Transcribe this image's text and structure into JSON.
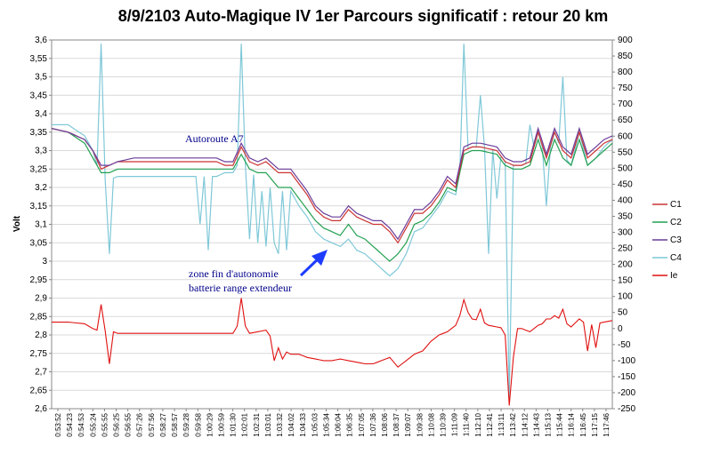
{
  "chart_data": {
    "type": "line",
    "title": "8/9/2103  Auto-Magique IV 1er Parcours significatif : retour 20 km",
    "ylabel": "Volt",
    "y_left": {
      "lim": [
        2.6,
        3.6
      ],
      "ticks": [
        "3,6",
        "3,55",
        "3,5",
        "3,45",
        "3,4",
        "3,35",
        "3,3",
        "3,25",
        "3,2",
        "3,15",
        "3,1",
        "3,05",
        "3",
        "2,95",
        "2,9",
        "2,85",
        "2,8",
        "2,75",
        "2,7",
        "2,65",
        "2,6"
      ]
    },
    "y_right": {
      "lim": [
        -250,
        900
      ],
      "ticks": [
        "900",
        "850",
        "800",
        "750",
        "700",
        "650",
        "600",
        "550",
        "500",
        "450",
        "400",
        "350",
        "300",
        "250",
        "200",
        "150",
        "100",
        "50",
        "0",
        "-50",
        "-100",
        "-150",
        "-200",
        "-250"
      ]
    },
    "x_ticks": [
      "0:53:52",
      "0:54:23",
      "0:54:53",
      "0:55:24",
      "0:55:55",
      "0:56:25",
      "0:56:55",
      "0:57:26",
      "0:57:56",
      "0:58:27",
      "0:58:57",
      "0:59:28",
      "0:59:58",
      "1:00:29",
      "1:00:59",
      "1:01:30",
      "1:02:01",
      "1:02:31",
      "1:03:01",
      "1:03:32",
      "1:04:02",
      "1:04:33",
      "1:05:03",
      "1:05:34",
      "1:06:04",
      "1:06:35",
      "1:07:05",
      "1:07:36",
      "1:08:06",
      "1:08:37",
      "1:09:07",
      "1:09:38",
      "1:10:08",
      "1:10:39",
      "1:11:09",
      "1:11:40",
      "1:12:10",
      "1:12:41",
      "1:13:11",
      "1:13:42",
      "1:14:12",
      "1:14:43",
      "1:15:13",
      "1:15:44",
      "1:16:14",
      "1:16:45",
      "1:17:15",
      "1:17:46"
    ],
    "grid": true,
    "legend_position": "right",
    "series": [
      {
        "name": "C1",
        "axis": "left",
        "color": "#cc3333"
      },
      {
        "name": "C2",
        "axis": "left",
        "color": "#22a050"
      },
      {
        "name": "C3",
        "axis": "left",
        "color": "#6a3d9a"
      },
      {
        "name": "C4",
        "axis": "left",
        "color": "#7fc8d8"
      },
      {
        "name": "Ie",
        "axis": "right",
        "color": "#e01010"
      }
    ],
    "anchors": {
      "C1": [
        [
          0,
          3.36
        ],
        [
          4,
          3.35
        ],
        [
          8,
          3.33
        ],
        [
          10,
          3.3
        ],
        [
          12,
          3.25
        ],
        [
          14,
          3.26
        ],
        [
          16,
          3.27
        ],
        [
          20,
          3.27
        ],
        [
          26,
          3.27
        ],
        [
          30,
          3.27
        ],
        [
          34,
          3.27
        ],
        [
          38,
          3.27
        ],
        [
          40,
          3.27
        ],
        [
          42,
          3.26
        ],
        [
          44,
          3.26
        ],
        [
          46,
          3.31
        ],
        [
          48,
          3.27
        ],
        [
          50,
          3.26
        ],
        [
          52,
          3.27
        ],
        [
          55,
          3.24
        ],
        [
          58,
          3.24
        ],
        [
          60,
          3.21
        ],
        [
          62,
          3.18
        ],
        [
          64,
          3.14
        ],
        [
          66,
          3.12
        ],
        [
          68,
          3.11
        ],
        [
          70,
          3.11
        ],
        [
          72,
          3.14
        ],
        [
          74,
          3.12
        ],
        [
          76,
          3.11
        ],
        [
          78,
          3.1
        ],
        [
          80,
          3.1
        ],
        [
          82,
          3.08
        ],
        [
          84,
          3.05
        ],
        [
          86,
          3.09
        ],
        [
          88,
          3.13
        ],
        [
          90,
          3.13
        ],
        [
          92,
          3.15
        ],
        [
          94,
          3.18
        ],
        [
          96,
          3.22
        ],
        [
          98,
          3.2
        ],
        [
          100,
          3.3
        ],
        [
          102,
          3.31
        ],
        [
          104,
          3.31
        ],
        [
          108,
          3.3
        ],
        [
          110,
          3.27
        ],
        [
          112,
          3.26
        ],
        [
          114,
          3.26
        ],
        [
          116,
          3.27
        ],
        [
          118,
          3.35
        ],
        [
          120,
          3.28
        ],
        [
          122,
          3.35
        ],
        [
          124,
          3.3
        ],
        [
          126,
          3.28
        ],
        [
          128,
          3.35
        ],
        [
          130,
          3.28
        ],
        [
          132,
          3.3
        ],
        [
          134,
          3.32
        ],
        [
          136,
          3.33
        ]
      ],
      "C2": [
        [
          0,
          3.36
        ],
        [
          4,
          3.35
        ],
        [
          8,
          3.32
        ],
        [
          10,
          3.28
        ],
        [
          12,
          3.24
        ],
        [
          14,
          3.24
        ],
        [
          16,
          3.25
        ],
        [
          20,
          3.25
        ],
        [
          26,
          3.25
        ],
        [
          30,
          3.25
        ],
        [
          34,
          3.25
        ],
        [
          38,
          3.25
        ],
        [
          40,
          3.25
        ],
        [
          42,
          3.25
        ],
        [
          44,
          3.25
        ],
        [
          46,
          3.29
        ],
        [
          48,
          3.25
        ],
        [
          50,
          3.24
        ],
        [
          52,
          3.24
        ],
        [
          55,
          3.2
        ],
        [
          58,
          3.2
        ],
        [
          60,
          3.17
        ],
        [
          62,
          3.14
        ],
        [
          64,
          3.11
        ],
        [
          66,
          3.09
        ],
        [
          68,
          3.08
        ],
        [
          70,
          3.07
        ],
        [
          72,
          3.1
        ],
        [
          74,
          3.07
        ],
        [
          76,
          3.06
        ],
        [
          78,
          3.04
        ],
        [
          80,
          3.02
        ],
        [
          82,
          3.0
        ],
        [
          84,
          3.02
        ],
        [
          86,
          3.05
        ],
        [
          88,
          3.1
        ],
        [
          90,
          3.11
        ],
        [
          92,
          3.13
        ],
        [
          94,
          3.16
        ],
        [
          96,
          3.2
        ],
        [
          98,
          3.19
        ],
        [
          100,
          3.29
        ],
        [
          102,
          3.3
        ],
        [
          104,
          3.3
        ],
        [
          108,
          3.29
        ],
        [
          110,
          3.26
        ],
        [
          112,
          3.25
        ],
        [
          114,
          3.25
        ],
        [
          116,
          3.26
        ],
        [
          118,
          3.33
        ],
        [
          120,
          3.26
        ],
        [
          122,
          3.33
        ],
        [
          124,
          3.28
        ],
        [
          126,
          3.26
        ],
        [
          128,
          3.33
        ],
        [
          130,
          3.26
        ],
        [
          132,
          3.28
        ],
        [
          134,
          3.3
        ],
        [
          136,
          3.32
        ]
      ],
      "C3": [
        [
          0,
          3.36
        ],
        [
          4,
          3.35
        ],
        [
          8,
          3.33
        ],
        [
          10,
          3.3
        ],
        [
          12,
          3.26
        ],
        [
          14,
          3.26
        ],
        [
          16,
          3.27
        ],
        [
          20,
          3.28
        ],
        [
          26,
          3.28
        ],
        [
          30,
          3.28
        ],
        [
          34,
          3.28
        ],
        [
          38,
          3.28
        ],
        [
          40,
          3.28
        ],
        [
          42,
          3.27
        ],
        [
          44,
          3.27
        ],
        [
          46,
          3.32
        ],
        [
          48,
          3.28
        ],
        [
          50,
          3.27
        ],
        [
          52,
          3.28
        ],
        [
          55,
          3.25
        ],
        [
          58,
          3.25
        ],
        [
          60,
          3.22
        ],
        [
          62,
          3.19
        ],
        [
          64,
          3.15
        ],
        [
          66,
          3.13
        ],
        [
          68,
          3.12
        ],
        [
          70,
          3.12
        ],
        [
          72,
          3.15
        ],
        [
          74,
          3.13
        ],
        [
          76,
          3.12
        ],
        [
          78,
          3.11
        ],
        [
          80,
          3.11
        ],
        [
          82,
          3.09
        ],
        [
          84,
          3.06
        ],
        [
          86,
          3.1
        ],
        [
          88,
          3.14
        ],
        [
          90,
          3.14
        ],
        [
          92,
          3.16
        ],
        [
          94,
          3.19
        ],
        [
          96,
          3.23
        ],
        [
          98,
          3.21
        ],
        [
          100,
          3.31
        ],
        [
          102,
          3.32
        ],
        [
          104,
          3.32
        ],
        [
          108,
          3.31
        ],
        [
          110,
          3.28
        ],
        [
          112,
          3.27
        ],
        [
          114,
          3.27
        ],
        [
          116,
          3.28
        ],
        [
          118,
          3.36
        ],
        [
          120,
          3.29
        ],
        [
          122,
          3.36
        ],
        [
          124,
          3.31
        ],
        [
          126,
          3.29
        ],
        [
          128,
          3.36
        ],
        [
          130,
          3.29
        ],
        [
          132,
          3.31
        ],
        [
          134,
          3.33
        ],
        [
          136,
          3.34
        ]
      ],
      "C4": [
        [
          0,
          3.37
        ],
        [
          4,
          3.37
        ],
        [
          8,
          3.34
        ],
        [
          10,
          3.3
        ],
        [
          12,
          3.22
        ],
        [
          14,
          3.22
        ],
        [
          16,
          3.23
        ],
        [
          20,
          3.23
        ],
        [
          26,
          3.23
        ],
        [
          30,
          3.23
        ],
        [
          34,
          3.23
        ],
        [
          38,
          3.23
        ],
        [
          40,
          3.23
        ],
        [
          42,
          3.24
        ],
        [
          44,
          3.24
        ],
        [
          46,
          3.28
        ],
        [
          48,
          3.24
        ],
        [
          50,
          3.23
        ],
        [
          52,
          3.23
        ],
        [
          55,
          3.19
        ],
        [
          58,
          3.19
        ],
        [
          60,
          3.15
        ],
        [
          62,
          3.12
        ],
        [
          64,
          3.08
        ],
        [
          66,
          3.06
        ],
        [
          68,
          3.05
        ],
        [
          70,
          3.04
        ],
        [
          72,
          3.06
        ],
        [
          74,
          3.03
        ],
        [
          76,
          3.02
        ],
        [
          78,
          3.0
        ],
        [
          80,
          2.98
        ],
        [
          82,
          2.96
        ],
        [
          84,
          2.98
        ],
        [
          86,
          3.02
        ],
        [
          88,
          3.08
        ],
        [
          90,
          3.09
        ],
        [
          92,
          3.12
        ],
        [
          94,
          3.15
        ],
        [
          96,
          3.19
        ],
        [
          98,
          3.18
        ],
        [
          100,
          3.3
        ],
        [
          102,
          3.31
        ],
        [
          104,
          3.31
        ],
        [
          108,
          3.3
        ],
        [
          110,
          3.27
        ],
        [
          112,
          3.26
        ],
        [
          114,
          3.26
        ],
        [
          116,
          3.27
        ],
        [
          118,
          3.35
        ],
        [
          120,
          3.27
        ],
        [
          122,
          3.35
        ],
        [
          124,
          3.29
        ],
        [
          126,
          3.26
        ],
        [
          128,
          3.35
        ],
        [
          130,
          3.26
        ],
        [
          132,
          3.28
        ],
        [
          134,
          3.31
        ],
        [
          136,
          3.33
        ]
      ],
      "Ie": [
        [
          0,
          20
        ],
        [
          4,
          20
        ],
        [
          8,
          15
        ],
        [
          10,
          0
        ],
        [
          12,
          -10
        ],
        [
          14,
          -5
        ],
        [
          16,
          -15
        ],
        [
          18,
          -15
        ],
        [
          20,
          -15
        ],
        [
          26,
          -15
        ],
        [
          30,
          -15
        ],
        [
          34,
          -15
        ],
        [
          38,
          -15
        ],
        [
          40,
          -15
        ],
        [
          42,
          -15
        ],
        [
          44,
          -15
        ],
        [
          46,
          30
        ],
        [
          48,
          -15
        ],
        [
          50,
          -10
        ],
        [
          52,
          -5
        ],
        [
          55,
          -60
        ],
        [
          58,
          -80
        ],
        [
          60,
          -80
        ],
        [
          62,
          -90
        ],
        [
          64,
          -95
        ],
        [
          66,
          -100
        ],
        [
          68,
          -100
        ],
        [
          70,
          -95
        ],
        [
          72,
          -100
        ],
        [
          74,
          -105
        ],
        [
          76,
          -110
        ],
        [
          78,
          -110
        ],
        [
          80,
          -100
        ],
        [
          82,
          -90
        ],
        [
          84,
          -120
        ],
        [
          86,
          -100
        ],
        [
          88,
          -80
        ],
        [
          90,
          -70
        ],
        [
          92,
          -40
        ],
        [
          94,
          -20
        ],
        [
          96,
          -10
        ],
        [
          98,
          10
        ],
        [
          100,
          70
        ],
        [
          102,
          30
        ],
        [
          104,
          25
        ],
        [
          106,
          10
        ],
        [
          108,
          5
        ],
        [
          110,
          0
        ],
        [
          112,
          0
        ],
        [
          114,
          0
        ],
        [
          116,
          -10
        ],
        [
          118,
          10
        ],
        [
          120,
          20
        ],
        [
          122,
          40
        ],
        [
          124,
          25
        ],
        [
          126,
          5
        ],
        [
          128,
          30
        ],
        [
          130,
          10
        ],
        [
          132,
          15
        ],
        [
          134,
          20
        ],
        [
          136,
          25
        ]
      ]
    },
    "spikes": {
      "C4": [
        [
          12,
          3.59
        ],
        [
          14,
          3.02
        ],
        [
          36,
          3.1
        ],
        [
          38,
          3.03
        ],
        [
          46,
          3.59
        ],
        [
          48,
          3.06
        ],
        [
          50,
          3.05
        ],
        [
          51,
          3.19
        ],
        [
          52,
          3.04
        ],
        [
          53,
          3.2
        ],
        [
          54,
          3.05
        ],
        [
          55,
          3.02
        ],
        [
          57,
          3.03
        ],
        [
          100,
          3.59
        ],
        [
          104,
          3.45
        ],
        [
          106,
          3.02
        ],
        [
          108,
          3.17
        ],
        [
          111,
          2.63
        ],
        [
          116,
          3.37
        ],
        [
          120,
          3.15
        ],
        [
          124,
          3.5
        ]
      ],
      "Ie": [
        [
          12,
          75
        ],
        [
          14,
          -110
        ],
        [
          46,
          95
        ],
        [
          54,
          -100
        ],
        [
          56,
          -95
        ],
        [
          100,
          90
        ],
        [
          104,
          60
        ],
        [
          110,
          -20
        ],
        [
          111,
          -240
        ],
        [
          112,
          -90
        ],
        [
          120,
          30
        ],
        [
          124,
          60
        ],
        [
          130,
          -70
        ],
        [
          132,
          -60
        ]
      ]
    },
    "annotations": [
      {
        "text": "Autoroute A7"
      },
      {
        "text": "zone fin d'autonomie"
      },
      {
        "text": "batterie range extendeur"
      }
    ]
  }
}
